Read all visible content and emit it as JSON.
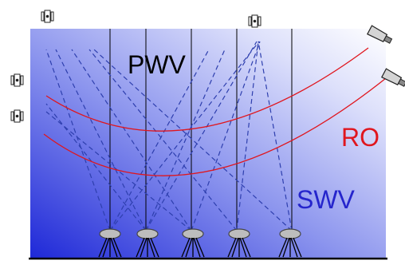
{
  "labels": {
    "pwv": "PWV",
    "ro": "RO",
    "swv": "SWV"
  },
  "colors": {
    "background_start": "#1e28d8",
    "background_end": "#ffffff",
    "ray_color": "#2e3fae",
    "ro_curve_color": "#e0161e",
    "pwv_text": "#000000",
    "ro_text": "#e0161e",
    "swv_text": "#2525cc",
    "ground_line": "#000000"
  },
  "icons": {
    "satellite": "gps-satellite-icon",
    "leo_satellite": "leo-satellite-icon",
    "receiver": "ground-receiver-icon"
  },
  "counts": {
    "gps_satellites": 4,
    "leo_satellites": 2,
    "ground_receivers": 5
  }
}
